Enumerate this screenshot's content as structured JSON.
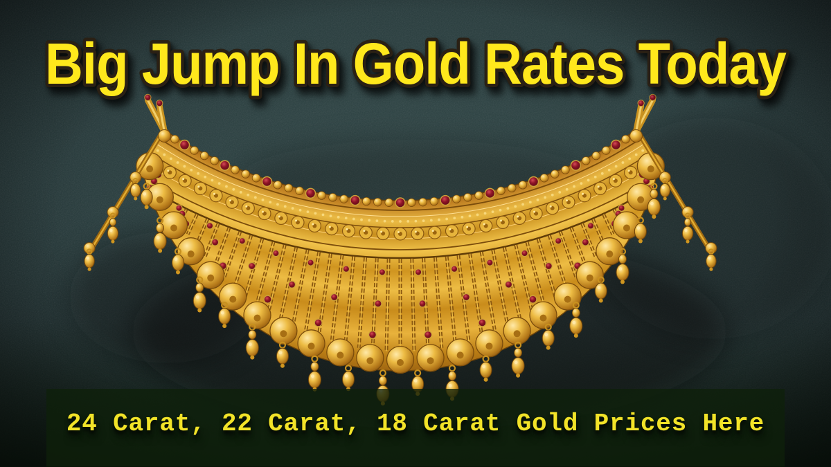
{
  "headline": {
    "text": "Big Jump In Gold Rates Today",
    "color": "#ffe81c",
    "outline_color": "#2a2014"
  },
  "banner": {
    "text": "24 Carat, 22 Carat, 18 Carat Gold Prices Here",
    "text_color": "#f2e328",
    "background_color": "rgba(14,32,10,0.78)"
  },
  "photo": {
    "subject": "ornate-gold-choker-necklace-with-red-gems-and-dangling-beads",
    "background": "dark-teal-fabric",
    "colors": {
      "gold_light": "#f2cf6b",
      "gold_mid": "#d0961f",
      "gold_deep": "#7a4c0c",
      "gold_edge": "#a06a12",
      "gem_red": "#8e1426",
      "gem_rim": "#caa23a",
      "bg_center": "#2f4646",
      "bg_edge": "#121c1d",
      "shadow": "#070d0c"
    }
  }
}
